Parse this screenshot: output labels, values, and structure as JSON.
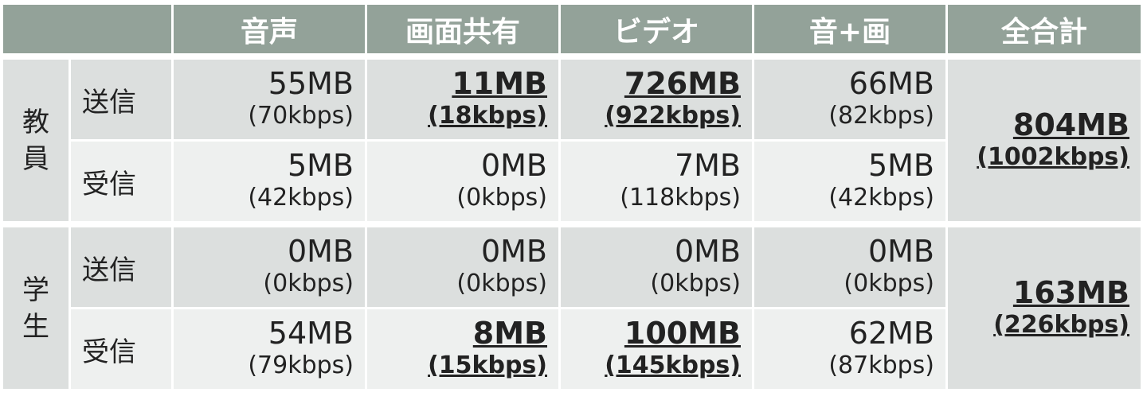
{
  "header": {
    "blank": "",
    "columns": [
      "音声",
      "画面共有",
      "ビデオ",
      "音+画",
      "全合計"
    ]
  },
  "groups": [
    {
      "label": "教員",
      "total": {
        "mb": "804MB",
        "kbps": "(1002kbps)"
      },
      "rows": [
        {
          "dir": "送信",
          "cells": [
            {
              "mb": "55MB",
              "kbps": "(70kbps)"
            },
            {
              "mb": "11MB",
              "kbps": "(18kbps)",
              "highlight": true
            },
            {
              "mb": "726MB",
              "kbps": "(922kbps)",
              "highlight": true
            },
            {
              "mb": "66MB",
              "kbps": "(82kbps)"
            }
          ]
        },
        {
          "dir": "受信",
          "cells": [
            {
              "mb": "5MB",
              "kbps": "(42kbps)"
            },
            {
              "mb": "0MB",
              "kbps": "(0kbps)"
            },
            {
              "mb": "7MB",
              "kbps": "(118kbps)"
            },
            {
              "mb": "5MB",
              "kbps": "(42kbps)"
            }
          ]
        }
      ]
    },
    {
      "label": "学生",
      "total": {
        "mb": "163MB",
        "kbps": "(226kbps)"
      },
      "rows": [
        {
          "dir": "送信",
          "cells": [
            {
              "mb": "0MB",
              "kbps": "(0kbps)"
            },
            {
              "mb": "0MB",
              "kbps": "(0kbps)"
            },
            {
              "mb": "0MB",
              "kbps": "(0kbps)"
            },
            {
              "mb": "0MB",
              "kbps": "(0kbps)"
            }
          ]
        },
        {
          "dir": "受信",
          "cells": [
            {
              "mb": "54MB",
              "kbps": "(79kbps)"
            },
            {
              "mb": "8MB",
              "kbps": "(15kbps)",
              "highlight": true
            },
            {
              "mb": "100MB",
              "kbps": "(145kbps)",
              "highlight": true
            },
            {
              "mb": "62MB",
              "kbps": "(87kbps)"
            }
          ]
        }
      ]
    }
  ],
  "colors": {
    "header_bg": "#93a299",
    "row_dark": "#dcdfde",
    "row_light": "#eef0ef"
  }
}
